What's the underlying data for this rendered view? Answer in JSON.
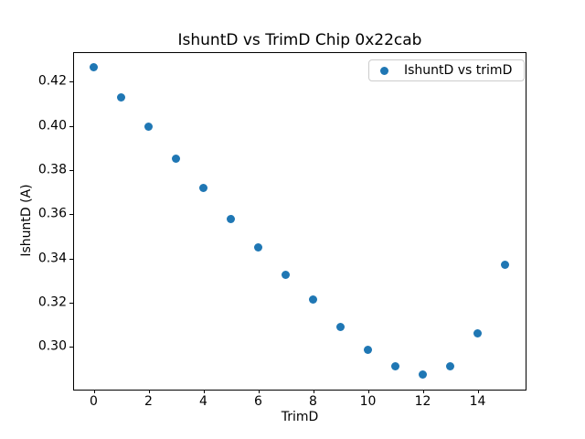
{
  "chart_data": {
    "type": "scatter",
    "title": "IshuntD vs TrimD Chip 0x22cab",
    "xlabel": "TrimD",
    "ylabel": "IshuntD (A)",
    "legend": {
      "label": "IshuntD vs trimD",
      "position": "upper right"
    },
    "x": [
      0,
      1,
      2,
      3,
      4,
      5,
      6,
      7,
      8,
      9,
      10,
      11,
      12,
      13,
      14,
      15
    ],
    "y": [
      0.4265,
      0.413,
      0.3995,
      0.385,
      0.372,
      0.358,
      0.345,
      0.3325,
      0.3215,
      0.309,
      0.2985,
      0.291,
      0.2875,
      0.291,
      0.306,
      0.337
    ],
    "xlim": [
      -0.75,
      15.75
    ],
    "ylim": [
      0.28055,
      0.43345
    ],
    "xticks": [
      0,
      2,
      4,
      6,
      8,
      10,
      12,
      14
    ],
    "xtick_labels": [
      "0",
      "2",
      "4",
      "6",
      "8",
      "10",
      "12",
      "14"
    ],
    "yticks": [
      0.3,
      0.32,
      0.34,
      0.36,
      0.38,
      0.4,
      0.42
    ],
    "ytick_labels": [
      "0.30",
      "0.32",
      "0.34",
      "0.36",
      "0.38",
      "0.40",
      "0.42"
    ],
    "marker_color": "#1f77b4",
    "axis_color": "#000000",
    "legend_border_color": "#cccccc",
    "grid": false
  }
}
